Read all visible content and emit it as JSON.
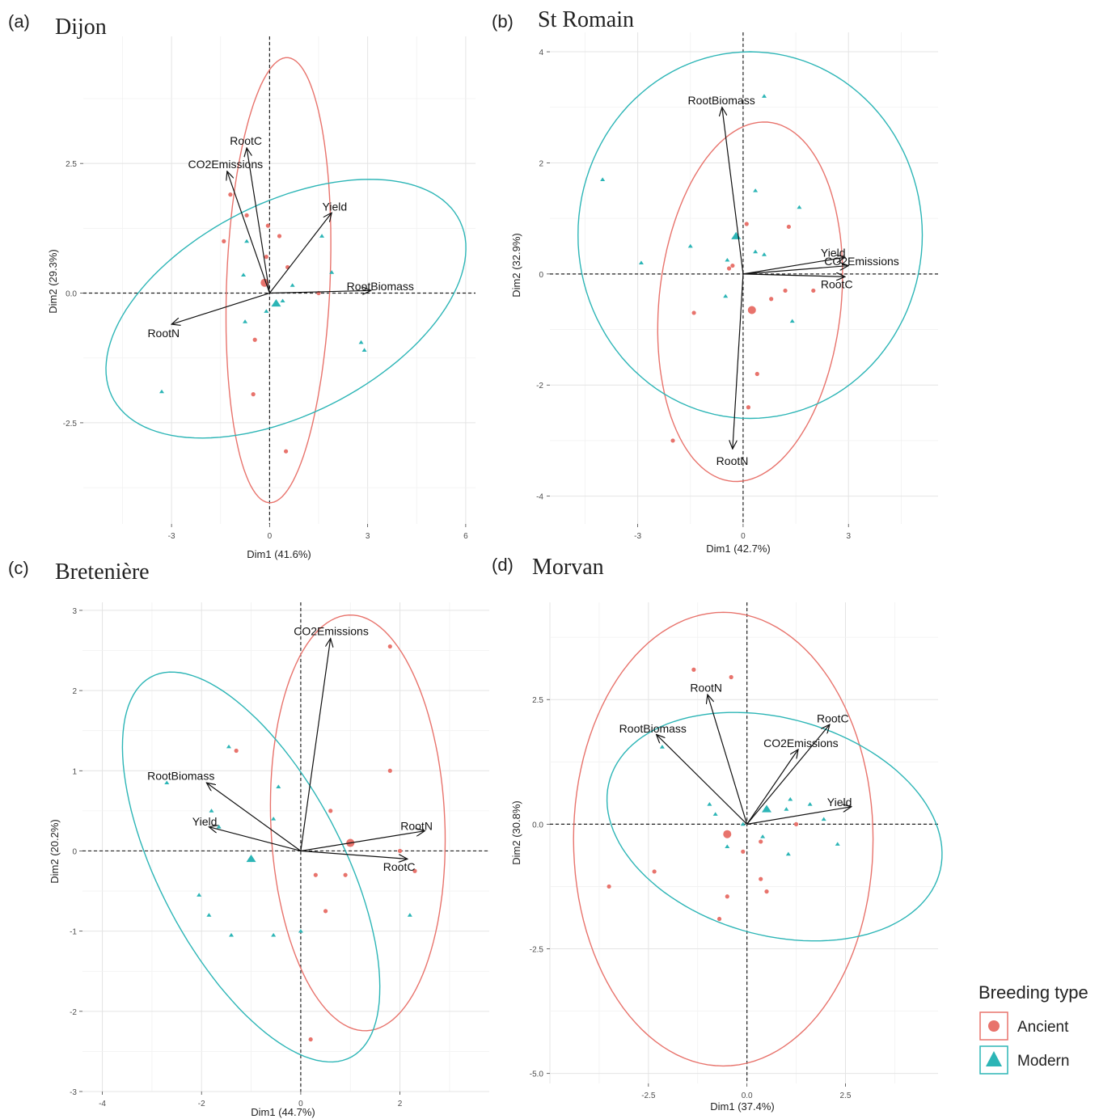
{
  "colors": {
    "ancient": "#E8736C",
    "modern": "#2CB5B6",
    "grid": "#ececec",
    "arrow": "#111111",
    "dash": "#222222"
  },
  "legend": {
    "title": "Breeding type",
    "items": [
      {
        "label": "Ancient",
        "color": "#E8736C",
        "shape": "circle"
      },
      {
        "label": "Modern",
        "color": "#2CB5B6",
        "shape": "triangle"
      }
    ]
  },
  "chart_data": [
    {
      "panel": "(a)",
      "title": "Dijon",
      "type": "scatter",
      "xlabel": "Dim1 (41.6%)",
      "ylabel": "Dim2 (29.3%)",
      "xlim": [
        -5.7,
        6.3
      ],
      "ylim": [
        -4.45,
        4.95
      ],
      "xticks": [
        -3,
        0,
        3,
        6
      ],
      "xtick_labels": [
        "-3",
        "0",
        "3",
        "6"
      ],
      "yticks": [
        -2.5,
        0,
        2.5
      ],
      "ytick_labels": [
        "-2.5",
        "0.0",
        "2.5"
      ],
      "variables": [
        {
          "name": "RootC",
          "x": -0.7,
          "y": 2.8
        },
        {
          "name": "CO2Emissions",
          "x": -1.3,
          "y": 2.35
        },
        {
          "name": "Yield",
          "x": 1.9,
          "y": 1.55
        },
        {
          "name": "RootBiomass",
          "x": 3.1,
          "y": 0.05
        },
        {
          "name": "RootN",
          "x": -3.0,
          "y": -0.6
        }
      ],
      "ancient_points": [
        [
          -1.2,
          1.9
        ],
        [
          -0.7,
          1.5
        ],
        [
          -1.4,
          1.0
        ],
        [
          -0.05,
          1.3
        ],
        [
          0.3,
          1.1
        ],
        [
          -0.1,
          0.7
        ],
        [
          0.55,
          0.5
        ],
        [
          -0.45,
          -0.9
        ],
        [
          -0.5,
          -1.95
        ],
        [
          0.5,
          -3.05
        ],
        [
          1.5,
          0.0
        ]
      ],
      "ancient_centroid": [
        -0.15,
        0.2
      ],
      "modern_points": [
        [
          -0.7,
          1.0
        ],
        [
          -0.8,
          0.35
        ],
        [
          0.7,
          0.15
        ],
        [
          1.6,
          1.1
        ],
        [
          1.9,
          0.4
        ],
        [
          -0.75,
          -0.55
        ],
        [
          0.4,
          -0.15
        ],
        [
          2.8,
          -0.95
        ],
        [
          2.9,
          -1.1
        ],
        [
          -3.3,
          -1.9
        ],
        [
          -0.1,
          -0.35
        ]
      ],
      "modern_centroid": [
        0.2,
        -0.2
      ],
      "ancient_ellipse": {
        "cx": 0.27,
        "cy": 0.25,
        "rx": 4.3,
        "ry": 1.58,
        "angle_deg": 86
      },
      "modern_ellipse": {
        "cx": 0.5,
        "cy": -0.3,
        "rx": 5.65,
        "ry": 2.15,
        "angle_deg": 14
      }
    },
    {
      "panel": "(b)",
      "title": "St Romain",
      "type": "scatter",
      "xlabel": "Dim1 (42.7%)",
      "ylabel": "Dim2 (32.9%)",
      "xlim": [
        -5.5,
        5.55
      ],
      "ylim": [
        -4.5,
        4.35
      ],
      "xticks": [
        -3,
        0,
        3
      ],
      "xtick_labels": [
        "-3",
        "0",
        "3"
      ],
      "yticks": [
        -4,
        -2,
        0,
        2,
        4
      ],
      "ytick_labels": [
        "-4",
        "-2",
        "0",
        "2",
        "4"
      ],
      "variables": [
        {
          "name": "RootBiomass",
          "x": -0.6,
          "y": 3.0
        },
        {
          "name": "Yield",
          "x": 2.9,
          "y": 0.3
        },
        {
          "name": "CO2Emissions",
          "x": 3.0,
          "y": 0.15
        },
        {
          "name": "RootC",
          "x": 2.9,
          "y": -0.05
        },
        {
          "name": "RootN",
          "x": -0.3,
          "y": -3.15
        }
      ],
      "ancient_points": [
        [
          0.1,
          0.9
        ],
        [
          1.3,
          0.85
        ],
        [
          -0.4,
          0.1
        ],
        [
          1.2,
          -0.3
        ],
        [
          0.8,
          -0.45
        ],
        [
          2.0,
          -0.3
        ],
        [
          -1.4,
          -0.7
        ],
        [
          0.4,
          -1.8
        ],
        [
          0.15,
          -2.4
        ],
        [
          -2.0,
          -3.0
        ],
        [
          -0.3,
          0.15
        ]
      ],
      "ancient_centroid": [
        0.25,
        -0.65
      ],
      "modern_points": [
        [
          0.6,
          3.2
        ],
        [
          -4.0,
          1.7
        ],
        [
          0.35,
          1.5
        ],
        [
          1.6,
          1.2
        ],
        [
          -1.5,
          0.5
        ],
        [
          0.35,
          0.4
        ],
        [
          0.6,
          0.35
        ],
        [
          -2.9,
          0.2
        ],
        [
          -0.45,
          0.25
        ],
        [
          -0.5,
          -0.4
        ],
        [
          1.4,
          -0.85
        ]
      ],
      "modern_centroid": [
        -0.2,
        0.68
      ],
      "ancient_ellipse": {
        "cx": 0.2,
        "cy": -0.5,
        "rx": 3.3,
        "ry": 2.55,
        "angle_deg": 72
      },
      "modern_ellipse": {
        "cx": 0.2,
        "cy": 0.7,
        "rx": 4.9,
        "ry": 3.3,
        "angle_deg": 0
      }
    },
    {
      "panel": "(c)",
      "title": "Bretenière",
      "type": "scatter",
      "xlabel": "Dim1 (44.7%)",
      "ylabel": "Dim2 (20.2%)",
      "xlim": [
        -4.4,
        3.8
      ],
      "ylim": [
        -3.0,
        3.1
      ],
      "xticks": [
        -4,
        -2,
        0,
        2
      ],
      "xtick_labels": [
        "-4",
        "-2",
        "0",
        "2"
      ],
      "yticks": [
        -3,
        -2,
        -1,
        0,
        1,
        2,
        3
      ],
      "ytick_labels": [
        "-3",
        "-2",
        "-1",
        "0",
        "1",
        "2",
        "3"
      ],
      "variables": [
        {
          "name": "CO2Emissions",
          "x": 0.6,
          "y": 2.65
        },
        {
          "name": "RootBiomass",
          "x": -1.9,
          "y": 0.85
        },
        {
          "name": "Yield",
          "x": -1.85,
          "y": 0.3
        },
        {
          "name": "RootN",
          "x": 2.5,
          "y": 0.25
        },
        {
          "name": "RootC",
          "x": 2.15,
          "y": -0.1
        }
      ],
      "ancient_points": [
        [
          1.8,
          2.55
        ],
        [
          -1.3,
          1.25
        ],
        [
          1.8,
          1.0
        ],
        [
          0.6,
          0.5
        ],
        [
          2.0,
          0.0
        ],
        [
          2.3,
          -0.25
        ],
        [
          0.3,
          -0.3
        ],
        [
          0.9,
          -0.3
        ],
        [
          0.5,
          -0.75
        ],
        [
          0.2,
          -2.35
        ]
      ],
      "ancient_centroid": [
        1.0,
        0.1
      ],
      "modern_points": [
        [
          -2.7,
          0.85
        ],
        [
          -1.45,
          1.3
        ],
        [
          -0.45,
          0.8
        ],
        [
          -1.8,
          0.5
        ],
        [
          -1.65,
          0.3
        ],
        [
          -0.55,
          0.4
        ],
        [
          -2.05,
          -0.55
        ],
        [
          -1.85,
          -0.8
        ],
        [
          -1.4,
          -1.05
        ],
        [
          -0.55,
          -1.05
        ],
        [
          0.0,
          -1.0
        ],
        [
          2.2,
          -0.8
        ]
      ],
      "modern_centroid": [
        -1.0,
        -0.1
      ],
      "ancient_ellipse": {
        "cx": 1.15,
        "cy": 0.35,
        "rx": 2.6,
        "ry": 1.75,
        "angle_deg": 96
      },
      "modern_ellipse": {
        "cx": -1.0,
        "cy": -0.2,
        "rx": 3.2,
        "ry": 1.55,
        "angle_deg": -42
      }
    },
    {
      "panel": "(d)",
      "title": "Morvan",
      "type": "scatter",
      "xlabel": "Dim1 (37.4%)",
      "ylabel": "Dim2 (30.8%)",
      "xlim": [
        -5.0,
        4.85
      ],
      "ylim": [
        -5.2,
        4.45
      ],
      "xticks": [
        -2.5,
        0,
        2.5
      ],
      "xtick_labels": [
        "-2.5",
        "0.0",
        "2.5"
      ],
      "yticks": [
        -5,
        -2.5,
        0,
        2.5
      ],
      "ytick_labels": [
        "-5.0",
        "-2.5",
        "0.0",
        "2.5"
      ],
      "variables": [
        {
          "name": "RootN",
          "x": -1.0,
          "y": 2.6
        },
        {
          "name": "RootBiomass",
          "x": -2.3,
          "y": 1.8
        },
        {
          "name": "RootC",
          "x": 2.1,
          "y": 2.0
        },
        {
          "name": "CO2Emissions",
          "x": 1.3,
          "y": 1.5
        },
        {
          "name": "Yield",
          "x": 2.65,
          "y": 0.35
        }
      ],
      "ancient_points": [
        [
          -1.35,
          3.1
        ],
        [
          -0.4,
          2.95
        ],
        [
          -3.5,
          -1.25
        ],
        [
          -2.35,
          -0.95
        ],
        [
          -0.1,
          -0.55
        ],
        [
          0.35,
          -0.35
        ],
        [
          1.25,
          0.0
        ],
        [
          0.35,
          -1.1
        ],
        [
          0.5,
          -1.35
        ],
        [
          -0.5,
          -1.45
        ],
        [
          -0.7,
          -1.9
        ]
      ],
      "ancient_centroid": [
        -0.5,
        -0.2
      ],
      "modern_points": [
        [
          -2.15,
          1.55
        ],
        [
          -0.95,
          0.4
        ],
        [
          -0.8,
          0.2
        ],
        [
          1.1,
          0.5
        ],
        [
          1.6,
          0.4
        ],
        [
          1.0,
          0.3
        ],
        [
          1.95,
          0.1
        ],
        [
          0.4,
          -0.25
        ],
        [
          -0.5,
          -0.45
        ],
        [
          1.05,
          -0.6
        ],
        [
          2.3,
          -0.4
        ],
        [
          -0.1,
          0.0
        ]
      ],
      "modern_centroid": [
        0.5,
        0.3
      ],
      "ancient_ellipse": {
        "cx": -0.6,
        "cy": -0.3,
        "rx": 4.55,
        "ry": 3.8,
        "angle_deg": 90
      },
      "modern_ellipse": {
        "cx": 0.7,
        "cy": -0.05,
        "rx": 4.3,
        "ry": 2.2,
        "angle_deg": -10
      }
    }
  ]
}
